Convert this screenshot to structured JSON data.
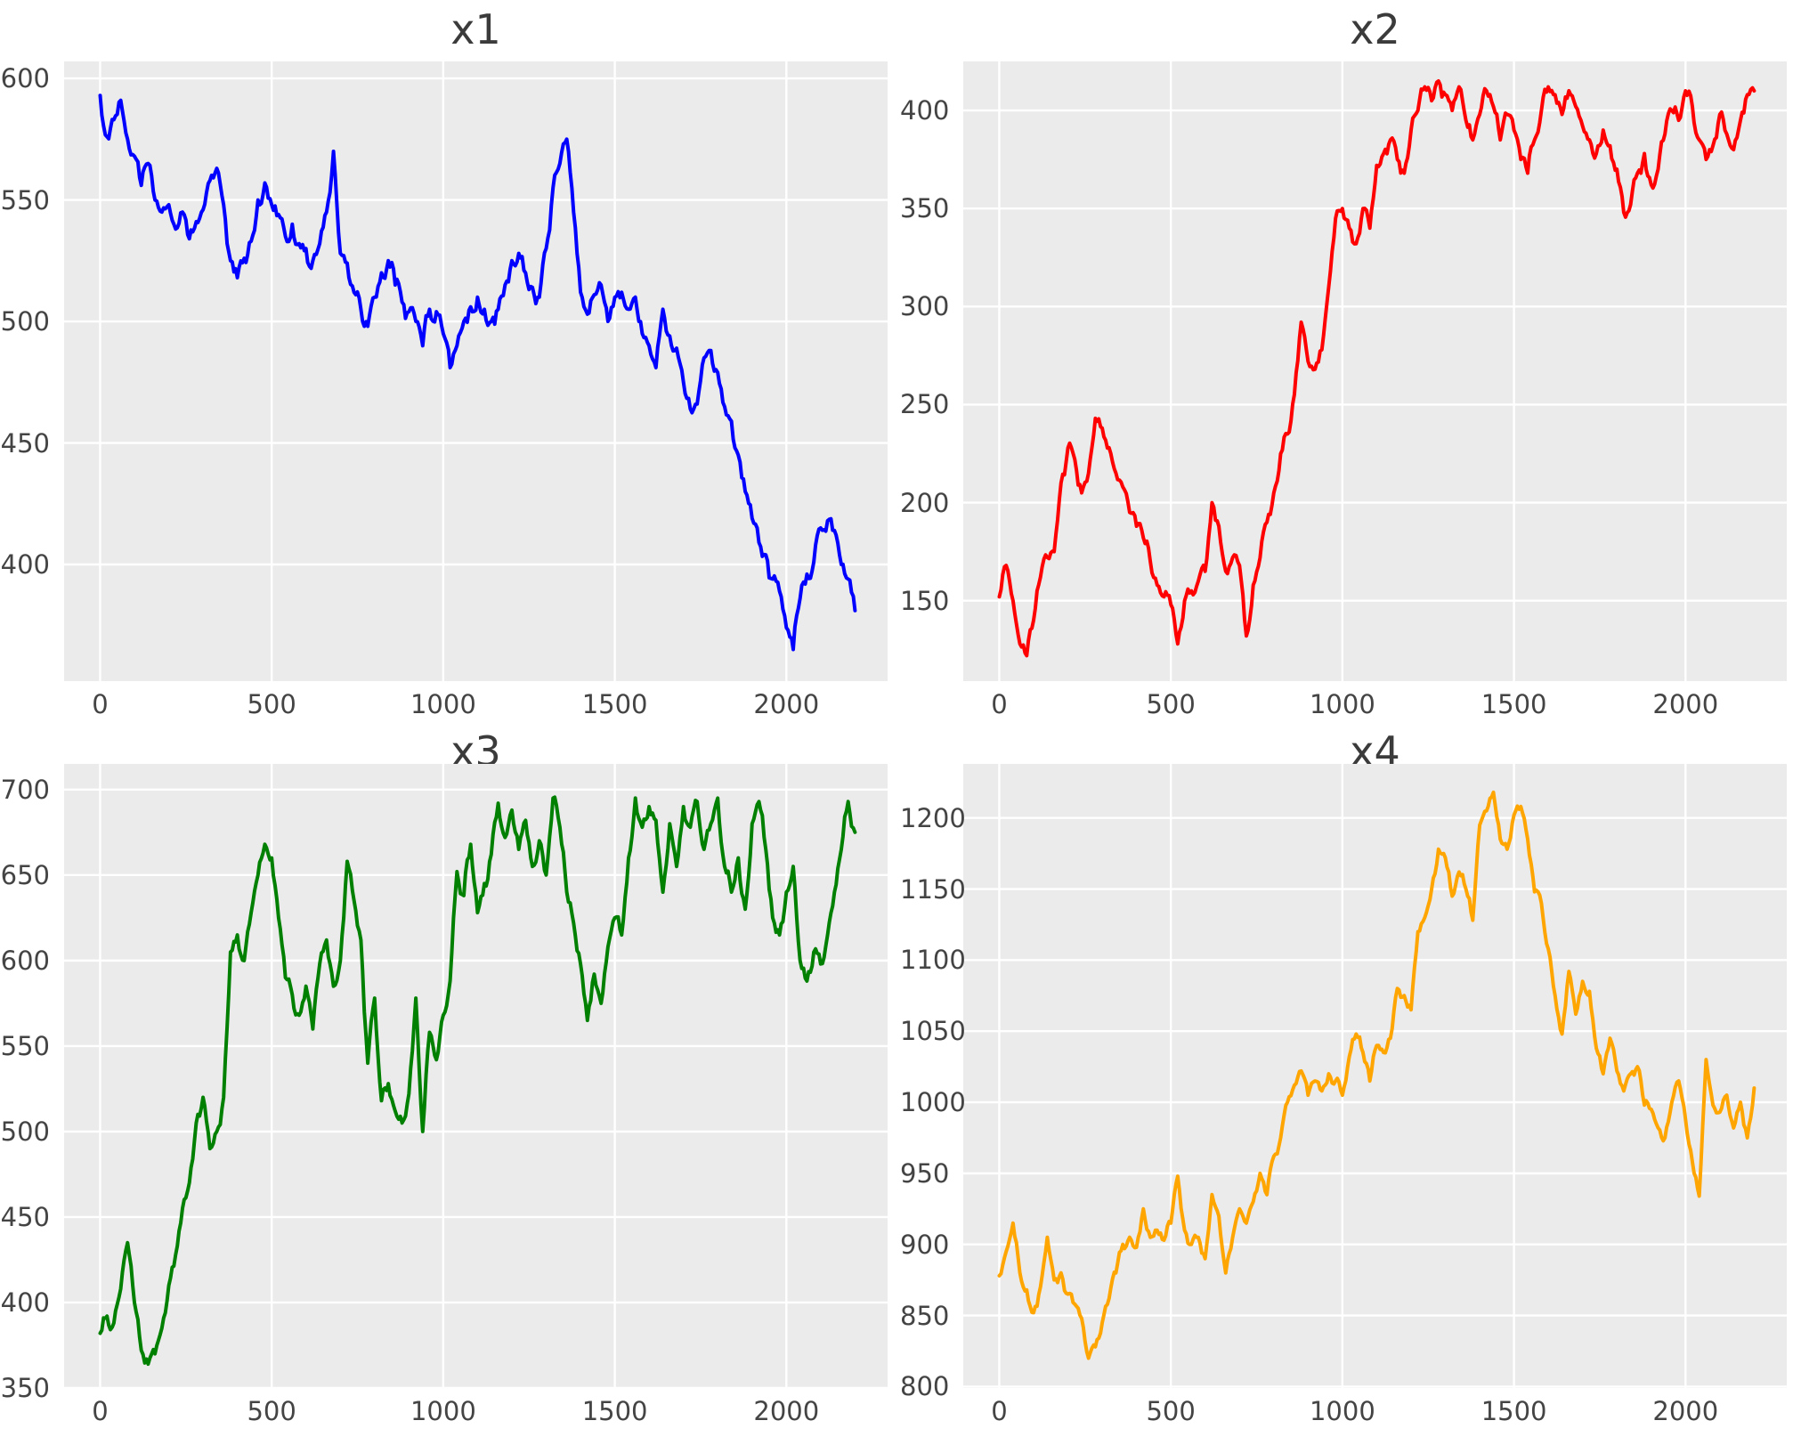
{
  "figure": {
    "background": "#ffffff",
    "plot_background": "#ebebeb",
    "grid_color": "#ffffff",
    "tick_color": "#444444",
    "title_color": "#3b3b3b"
  },
  "chart_data": [
    {
      "type": "line",
      "title": "x1",
      "color": "#0000ff",
      "legend": null,
      "grid": true,
      "xlim": [
        -105,
        2295
      ],
      "ylim": [
        352,
        607
      ],
      "xticks": [
        0,
        500,
        1000,
        1500,
        2000
      ],
      "yticks": [
        400,
        450,
        500,
        550,
        600
      ],
      "x_start": 0,
      "x_step": 20,
      "noise_amp": 5,
      "values": [
        593,
        576,
        583,
        591,
        575,
        568,
        556,
        565,
        550,
        545,
        548,
        538,
        545,
        534,
        541,
        546,
        558,
        563,
        548,
        525,
        518,
        526,
        533,
        550,
        557,
        548,
        544,
        535,
        540,
        532,
        530,
        525,
        532,
        545,
        570,
        528,
        524,
        512,
        505,
        498,
        510,
        520,
        525,
        515,
        508,
        504,
        500,
        490,
        505,
        504,
        495,
        481,
        490,
        500,
        506,
        510,
        505,
        500,
        505,
        515,
        525,
        528,
        520,
        514,
        510,
        530,
        555,
        565,
        575,
        545,
        512,
        503,
        511,
        515,
        500,
        510,
        512,
        505,
        510,
        495,
        490,
        481,
        505,
        494,
        489,
        475,
        464,
        466,
        485,
        488,
        479,
        465,
        459,
        445,
        430,
        419,
        409,
        404,
        394,
        389,
        374,
        365,
        386,
        396,
        401,
        415,
        418,
        414,
        400,
        394,
        381
      ]
    },
    {
      "type": "line",
      "title": "x2",
      "color": "#ff0000",
      "legend": null,
      "grid": true,
      "xlim": [
        -105,
        2295
      ],
      "ylim": [
        109,
        425
      ],
      "xticks": [
        0,
        500,
        1000,
        1500,
        2000
      ],
      "yticks": [
        150,
        200,
        250,
        300,
        350,
        400
      ],
      "x_start": 0,
      "x_step": 20,
      "noise_amp": 5,
      "values": [
        152,
        168,
        150,
        128,
        122,
        140,
        162,
        172,
        175,
        210,
        228,
        222,
        205,
        215,
        243,
        238,
        228,
        215,
        208,
        195,
        188,
        182,
        170,
        158,
        152,
        148,
        128,
        150,
        155,
        160,
        165,
        200,
        188,
        165,
        172,
        168,
        132,
        158,
        172,
        190,
        205,
        225,
        235,
        255,
        292,
        272,
        268,
        278,
        310,
        345,
        350,
        340,
        332,
        350,
        340,
        372,
        378,
        385,
        375,
        368,
        390,
        400,
        412,
        405,
        415,
        408,
        400,
        412,
        395,
        385,
        398,
        410,
        402,
        385,
        398,
        390,
        375,
        368,
        385,
        400,
        412,
        408,
        398,
        410,
        402,
        392,
        385,
        378,
        390,
        382,
        370,
        348,
        352,
        368,
        378,
        362,
        370,
        388,
        400,
        395,
        410,
        402,
        385,
        375,
        382,
        398,
        388,
        380,
        395,
        408,
        410
      ]
    },
    {
      "type": "line",
      "title": "x3",
      "color": "#008000",
      "legend": null,
      "grid": true,
      "xlim": [
        -105,
        2295
      ],
      "ylim": [
        350,
        715
      ],
      "xticks": [
        0,
        500,
        1000,
        1500,
        2000
      ],
      "yticks": [
        350,
        400,
        450,
        500,
        550,
        600,
        650,
        700
      ],
      "x_start": 0,
      "x_step": 20,
      "noise_amp": 6,
      "values": [
        382,
        392,
        388,
        408,
        435,
        400,
        372,
        364,
        370,
        385,
        410,
        428,
        455,
        470,
        505,
        520,
        490,
        500,
        520,
        605,
        615,
        600,
        628,
        650,
        668,
        660,
        625,
        590,
        580,
        568,
        585,
        560,
        598,
        612,
        585,
        600,
        658,
        635,
        612,
        540,
        578,
        518,
        528,
        512,
        505,
        522,
        578,
        500,
        558,
        542,
        568,
        588,
        652,
        638,
        668,
        628,
        645,
        662,
        692,
        672,
        688,
        665,
        682,
        655,
        670,
        650,
        695,
        678,
        640,
        622,
        598,
        565,
        592,
        575,
        608,
        625,
        615,
        660,
        695,
        678,
        690,
        682,
        640,
        680,
        655,
        690,
        678,
        693,
        665,
        680,
        695,
        655,
        640,
        660,
        630,
        680,
        693,
        665,
        625,
        615,
        640,
        655,
        600,
        588,
        605,
        598,
        615,
        640,
        665,
        693,
        675
      ]
    },
    {
      "type": "line",
      "title": "x4",
      "color": "#ffa500",
      "legend": null,
      "grid": true,
      "xlim": [
        -105,
        2295
      ],
      "ylim": [
        799,
        1238
      ],
      "xticks": [
        0,
        500,
        1000,
        1500,
        2000
      ],
      "yticks": [
        800,
        850,
        900,
        950,
        1000,
        1050,
        1100,
        1150,
        1200
      ],
      "x_start": 0,
      "x_step": 20,
      "noise_amp": 5,
      "values": [
        878,
        895,
        915,
        880,
        868,
        852,
        870,
        905,
        875,
        880,
        865,
        858,
        848,
        820,
        828,
        845,
        862,
        880,
        900,
        905,
        898,
        925,
        905,
        910,
        903,
        915,
        948,
        910,
        900,
        905,
        890,
        935,
        920,
        880,
        905,
        925,
        915,
        930,
        950,
        935,
        962,
        975,
        1000,
        1012,
        1022,
        1005,
        1015,
        1008,
        1020,
        1015,
        1005,
        1032,
        1048,
        1035,
        1015,
        1040,
        1035,
        1045,
        1080,
        1075,
        1065,
        1120,
        1130,
        1150,
        1178,
        1172,
        1145,
        1162,
        1150,
        1128,
        1195,
        1205,
        1218,
        1185,
        1178,
        1202,
        1208,
        1185,
        1148,
        1140,
        1108,
        1075,
        1048,
        1092,
        1062,
        1085,
        1078,
        1038,
        1020,
        1045,
        1022,
        1008,
        1020,
        1025,
        998,
        995,
        982,
        975,
        1000,
        1015,
        988,
        958,
        934,
        1030,
        998,
        993,
        1005,
        982,
        1000,
        975,
        1010
      ]
    }
  ]
}
